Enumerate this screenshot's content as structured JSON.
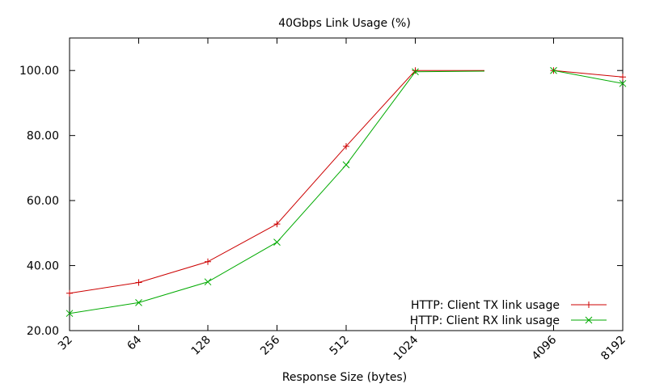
{
  "chart_data": {
    "type": "line",
    "title": "40Gbps Link Usage (%)",
    "xlabel": "Response Size (bytes)",
    "ylabel": "",
    "x_scale": "log2",
    "xlim": [
      32,
      8192
    ],
    "ylim": [
      20,
      110
    ],
    "x_ticks": [
      "32",
      "64",
      "128",
      "256",
      "512",
      "1024",
      "4096",
      "8192"
    ],
    "y_ticks": [
      "20.00",
      "40.00",
      "60.00",
      "80.00",
      "100.00"
    ],
    "grid": false,
    "legend_position": "bottom-right",
    "series": [
      {
        "name": "HTTP: Client TX link usage",
        "color": "#cc0000",
        "marker": "plus",
        "segments": [
          {
            "x": [
              32,
              64,
              128,
              256,
              512,
              1024,
              2048
            ],
            "y": [
              31.5,
              34.8,
              41.2,
              52.8,
              76.7,
              100.0,
              100.0
            ]
          },
          {
            "x": [
              4096,
              8192
            ],
            "y": [
              100.0,
              98.0
            ]
          }
        ]
      },
      {
        "name": "HTTP: Client RX link usage",
        "color": "#00aa00",
        "marker": "cross",
        "segments": [
          {
            "x": [
              32,
              64,
              128,
              256,
              512,
              1024,
              2048
            ],
            "y": [
              25.3,
              28.6,
              35.0,
              47.2,
              71.0,
              99.6,
              99.8
            ]
          },
          {
            "x": [
              4096,
              8192
            ],
            "y": [
              100.0,
              96.0
            ]
          }
        ]
      }
    ]
  }
}
